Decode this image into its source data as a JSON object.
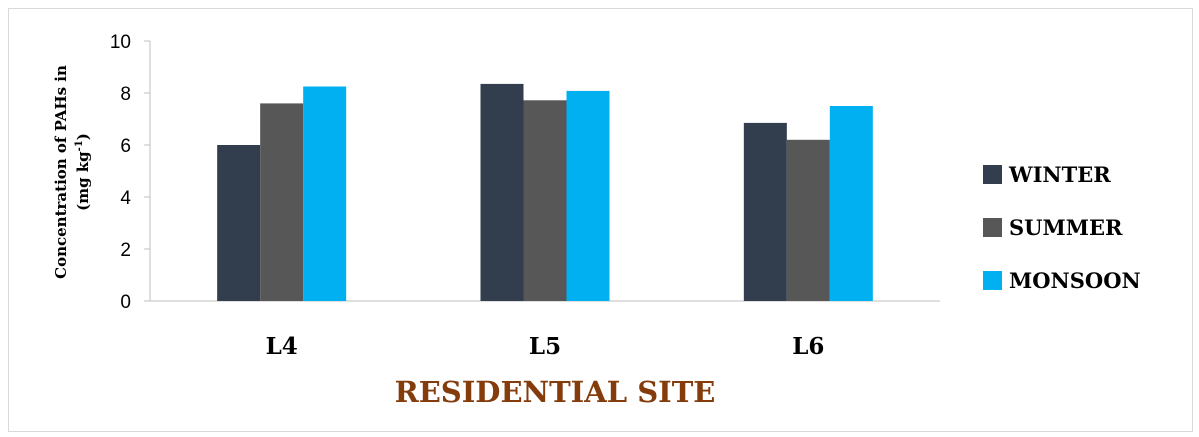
{
  "chart_data": {
    "type": "bar",
    "categories": [
      "L4",
      "L5",
      "L6"
    ],
    "series": [
      {
        "name": "WINTER",
        "color": "#323d4e",
        "values": [
          6.0,
          8.35,
          6.85
        ]
      },
      {
        "name": "SUMMER",
        "color": "#575757",
        "values": [
          7.6,
          7.72,
          6.2
        ]
      },
      {
        "name": "MONSOON",
        "color": "#00b0f0",
        "values": [
          8.25,
          8.08,
          7.5
        ]
      }
    ],
    "xlabel": "RESIDENTIAL SITE",
    "xlabel_color": "#843c0c",
    "ylabel_line1": "Concentration of PAHs in",
    "ylabel_line2_main": "(mg kg",
    "ylabel_line2_sup": "-1",
    "ylabel_line2_end": ")",
    "yticks": [
      "0",
      "2",
      "4",
      "6",
      "8",
      "10"
    ],
    "ylim": [
      0,
      10
    ],
    "legend_position": "right",
    "grid": false
  }
}
